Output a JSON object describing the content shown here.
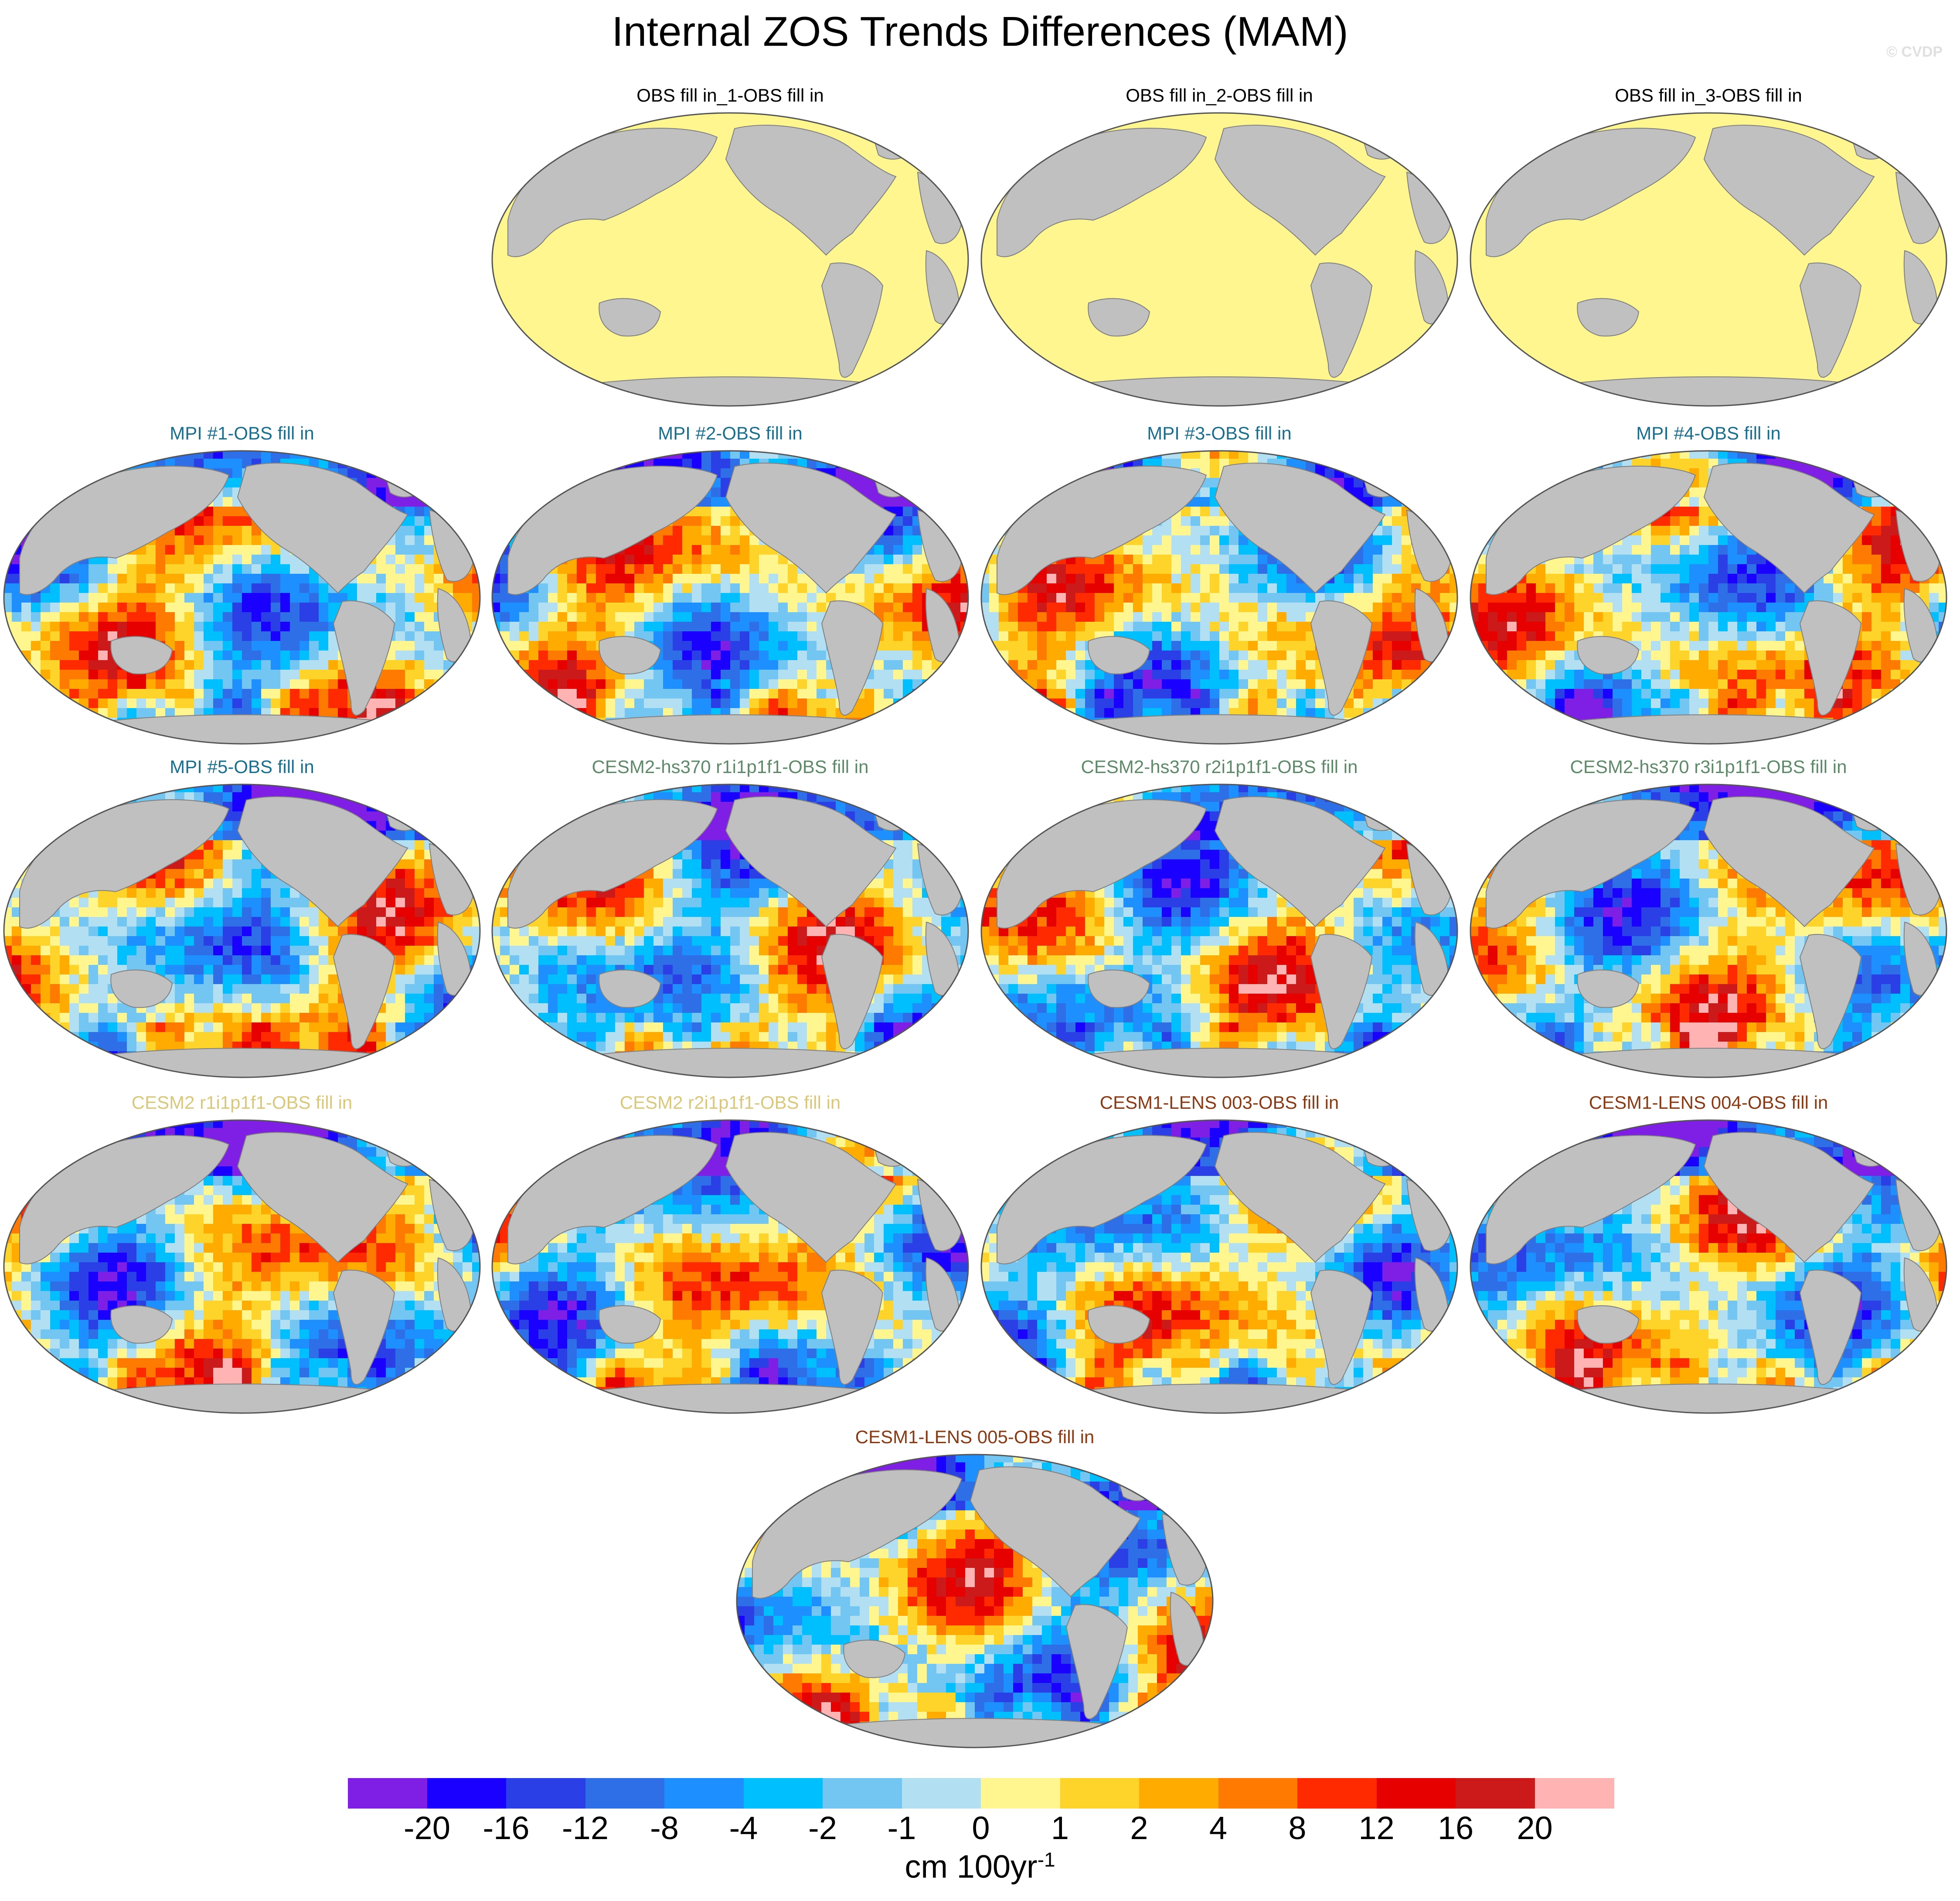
{
  "figure": {
    "title": "Internal ZOS Trends Differences (MAM)",
    "watermark": "© CVDP"
  },
  "colors": {
    "land": "#c0c0c0",
    "obs_zero": "#fff68f",
    "title_black": "#000000",
    "title_mpi": "#1a6f8f",
    "title_cesm2_hs370": "#5f8a6a",
    "title_cesm2": "#d9c87a",
    "title_cesm1_lens": "#8a3a12"
  },
  "panels": [
    {
      "title": "OBS fill in_1-OBS fill in",
      "group": "obs"
    },
    {
      "title": "OBS fill in_2-OBS fill in",
      "group": "obs"
    },
    {
      "title": "OBS fill in_3-OBS fill in",
      "group": "obs"
    },
    {
      "title": "MPI #1-OBS fill in",
      "group": "mpi"
    },
    {
      "title": "MPI #2-OBS fill in",
      "group": "mpi"
    },
    {
      "title": "MPI #3-OBS fill in",
      "group": "mpi"
    },
    {
      "title": "MPI #4-OBS fill in",
      "group": "mpi"
    },
    {
      "title": "MPI #5-OBS fill in",
      "group": "mpi"
    },
    {
      "title": "CESM2-hs370 r1i1p1f1-OBS fill in",
      "group": "cesm2hs"
    },
    {
      "title": "CESM2-hs370 r2i1p1f1-OBS fill in",
      "group": "cesm2hs"
    },
    {
      "title": "CESM2-hs370 r3i1p1f1-OBS fill in",
      "group": "cesm2hs"
    },
    {
      "title": "CESM2 r1i1p1f1-OBS fill in",
      "group": "cesm2"
    },
    {
      "title": "CESM2 r2i1p1f1-OBS fill in",
      "group": "cesm2"
    },
    {
      "title": "CESM1-LENS 003-OBS fill in",
      "group": "lens"
    },
    {
      "title": "CESM1-LENS 004-OBS fill in",
      "group": "lens"
    },
    {
      "title": "CESM1-LENS 005-OBS fill in",
      "group": "lens"
    }
  ],
  "colorbar": {
    "labels": [
      "-20",
      "-16",
      "-12",
      "-8",
      "-4",
      "-2",
      "-1",
      "0",
      "1",
      "2",
      "4",
      "8",
      "12",
      "16",
      "20"
    ],
    "colors": [
      "#7f1fe6",
      "#1a00ff",
      "#2a3fe6",
      "#2e6ee6",
      "#1e8fff",
      "#00bfff",
      "#73c6f2",
      "#b3dff2",
      "#fff68f",
      "#ffd42a",
      "#ffab00",
      "#ff7a00",
      "#ff2a00",
      "#e60000",
      "#cc1a1a",
      "#ffb3b3"
    ],
    "units": "cm 100yr",
    "units_exponent": "-1"
  }
}
